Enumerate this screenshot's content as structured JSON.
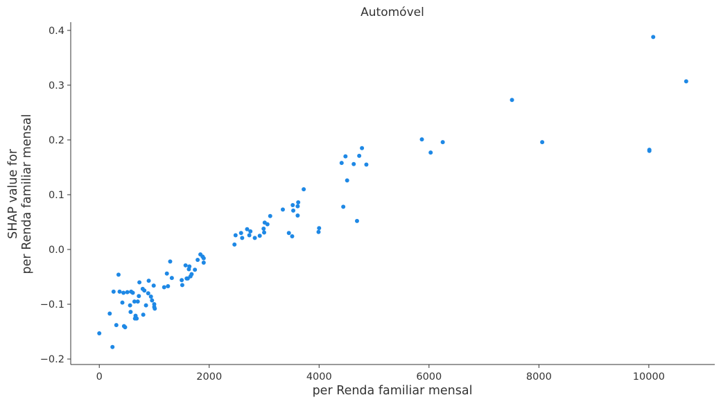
{
  "chart_data": {
    "type": "scatter",
    "title": "Automóvel",
    "xlabel": "per Renda familiar mensal",
    "ylabel_lines": [
      "SHAP value for",
      "per Renda familiar mensal"
    ],
    "xlim": [
      -520,
      11200
    ],
    "ylim": [
      -0.21,
      0.415
    ],
    "xticks": [
      0,
      2000,
      4000,
      6000,
      8000,
      10000
    ],
    "xtick_labels": [
      "0",
      "2000",
      "4000",
      "6000",
      "8000",
      "10000"
    ],
    "yticks": [
      -0.2,
      -0.1,
      0.0,
      0.1,
      0.2,
      0.3,
      0.4
    ],
    "ytick_labels": [
      "−0.2",
      "−0.1",
      "0.0",
      "0.1",
      "0.2",
      "0.3",
      "0.4"
    ],
    "grid": false,
    "point_color": "#1e88e5",
    "series": [
      {
        "points": [
          [
            0,
            -0.153
          ],
          [
            190,
            -0.117
          ],
          [
            240,
            -0.178
          ],
          [
            260,
            -0.077
          ],
          [
            310,
            -0.138
          ],
          [
            350,
            -0.046
          ],
          [
            370,
            -0.077
          ],
          [
            420,
            -0.097
          ],
          [
            440,
            -0.079
          ],
          [
            450,
            -0.14
          ],
          [
            470,
            -0.142
          ],
          [
            510,
            -0.078
          ],
          [
            560,
            -0.102
          ],
          [
            570,
            -0.114
          ],
          [
            580,
            -0.077
          ],
          [
            610,
            -0.079
          ],
          [
            640,
            -0.095
          ],
          [
            650,
            -0.126
          ],
          [
            660,
            -0.121
          ],
          [
            680,
            -0.126
          ],
          [
            700,
            -0.095
          ],
          [
            720,
            -0.085
          ],
          [
            730,
            -0.06
          ],
          [
            790,
            -0.072
          ],
          [
            800,
            -0.119
          ],
          [
            820,
            -0.075
          ],
          [
            850,
            -0.102
          ],
          [
            890,
            -0.08
          ],
          [
            900,
            -0.057
          ],
          [
            940,
            -0.086
          ],
          [
            960,
            -0.093
          ],
          [
            990,
            -0.066
          ],
          [
            1000,
            -0.1
          ],
          [
            1000,
            -0.105
          ],
          [
            1010,
            -0.108
          ],
          [
            1180,
            -0.069
          ],
          [
            1230,
            -0.044
          ],
          [
            1250,
            -0.067
          ],
          [
            1290,
            -0.022
          ],
          [
            1320,
            -0.052
          ],
          [
            1500,
            -0.056
          ],
          [
            1510,
            -0.065
          ],
          [
            1570,
            -0.029
          ],
          [
            1590,
            -0.053
          ],
          [
            1610,
            -0.053
          ],
          [
            1630,
            -0.036
          ],
          [
            1640,
            -0.031
          ],
          [
            1660,
            -0.049
          ],
          [
            1680,
            -0.045
          ],
          [
            1740,
            -0.037
          ],
          [
            1790,
            -0.019
          ],
          [
            1840,
            -0.009
          ],
          [
            1880,
            -0.013
          ],
          [
            1900,
            -0.016
          ],
          [
            1900,
            -0.024
          ],
          [
            2460,
            0.009
          ],
          [
            2480,
            0.026
          ],
          [
            2580,
            0.03
          ],
          [
            2600,
            0.021
          ],
          [
            2690,
            0.037
          ],
          [
            2730,
            0.026
          ],
          [
            2750,
            0.033
          ],
          [
            2830,
            0.021
          ],
          [
            2920,
            0.025
          ],
          [
            2990,
            0.038
          ],
          [
            3000,
            0.031
          ],
          [
            3010,
            0.049
          ],
          [
            3060,
            0.046
          ],
          [
            3110,
            0.061
          ],
          [
            3340,
            0.073
          ],
          [
            3450,
            0.03
          ],
          [
            3510,
            0.024
          ],
          [
            3520,
            0.081
          ],
          [
            3530,
            0.071
          ],
          [
            3610,
            0.062
          ],
          [
            3610,
            0.079
          ],
          [
            3620,
            0.086
          ],
          [
            3720,
            0.11
          ],
          [
            3990,
            0.032
          ],
          [
            4000,
            0.039
          ],
          [
            4410,
            0.158
          ],
          [
            4440,
            0.078
          ],
          [
            4480,
            0.17
          ],
          [
            4510,
            0.126
          ],
          [
            4630,
            0.156
          ],
          [
            4690,
            0.052
          ],
          [
            4730,
            0.171
          ],
          [
            4780,
            0.185
          ],
          [
            4860,
            0.155
          ],
          [
            5870,
            0.201
          ],
          [
            6030,
            0.177
          ],
          [
            6250,
            0.196
          ],
          [
            7510,
            0.273
          ],
          [
            8060,
            0.196
          ],
          [
            10010,
            0.18
          ],
          [
            10010,
            0.182
          ],
          [
            10080,
            0.388
          ],
          [
            10680,
            0.307
          ]
        ]
      }
    ]
  }
}
